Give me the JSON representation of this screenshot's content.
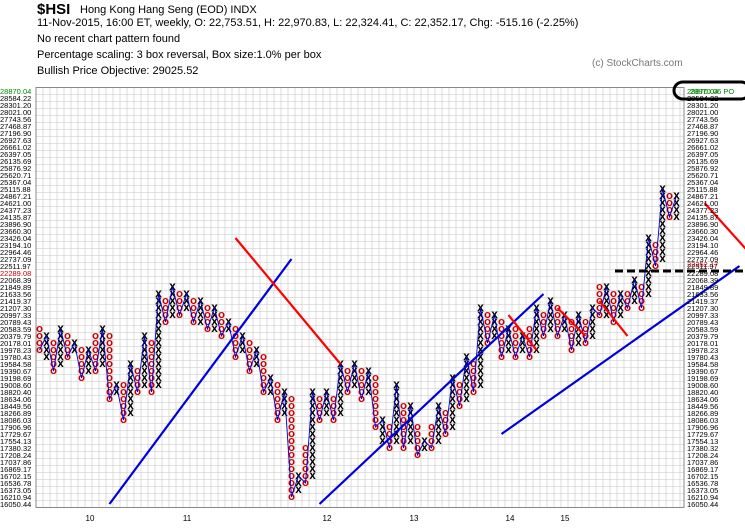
{
  "header": {
    "symbol": "$HSI",
    "name": "Hong Kong Hang Seng (EOD)  INDX",
    "ohlc": "11-Nov-2015, 16:00 ET, weekly, O: 22,753.51, H: 22,970.83, L: 22,324.41, C: 22,352.17, Chg: -515.16 (-2.25%)",
    "pattern": "No recent chart pattern found",
    "scaling": "Percentage scaling: 3 box reversal, Box size:1.0% per box",
    "objective": "Bullish Price Objective: 29025.52",
    "credit": "(c) StockCharts.com"
  },
  "colors": {
    "x": "#000000",
    "o": "#cc0000",
    "trend_up": "#0000dd",
    "trend_down": "#ff0000",
    "price_line": "#0000cc",
    "grid": "#c6c6c6",
    "objective_label": "#008800",
    "current_label": "#cc0000"
  },
  "chart_data": {
    "type": "point-and-figure",
    "box_size_pct": 1.0,
    "reversal": 3,
    "y_labels": [
      "28870.04",
      "28584.22",
      "28301.20",
      "28021.00",
      "27743.56",
      "27468.87",
      "27196.90",
      "26927.63",
      "26661.02",
      "26397.05",
      "26135.69",
      "25876.92",
      "25620.71",
      "25367.04",
      "25115.88",
      "24867.21",
      "24621.00",
      "24377.23",
      "24135.87",
      "23896.90",
      "23660.30",
      "23426.04",
      "23194.10",
      "22964.46",
      "22737.09",
      "22511.97",
      "22289.08",
      "22068.39",
      "21849.89",
      "21633.56",
      "21419.37",
      "21207.30",
      "20997.33",
      "20789.43",
      "20583.59",
      "20379.79",
      "20178.01",
      "19978.23",
      "19780.43",
      "19584.58",
      "19390.67",
      "19198.69",
      "19008.60",
      "18820.40",
      "18634.06",
      "18449.56",
      "18266.89",
      "18086.03",
      "17906.96",
      "17729.67",
      "17554.13",
      "17380.32",
      "17208.24",
      "17037.86",
      "16869.17",
      "16702.15",
      "16536.78",
      "16373.05",
      "16210.94",
      "16050.44"
    ],
    "objective_label": "28870.06 PO",
    "current_label": "22352.17",
    "x_labels": [
      "10",
      "11",
      "12",
      "13",
      "14",
      "15"
    ],
    "columns": [
      {
        "type": "O",
        "top": 25,
        "bottom": 22
      },
      {
        "type": "X",
        "top": 24,
        "bottom": 21
      },
      {
        "type": "O",
        "top": 23,
        "bottom": 19
      },
      {
        "type": "X",
        "top": 25,
        "bottom": 20
      },
      {
        "type": "O",
        "top": 24,
        "bottom": 21
      },
      {
        "type": "X",
        "top": 23,
        "bottom": 22
      },
      {
        "type": "O",
        "top": 22,
        "bottom": 18
      },
      {
        "type": "X",
        "top": 22,
        "bottom": 19
      },
      {
        "type": "O",
        "top": 24,
        "bottom": 19
      },
      {
        "type": "X",
        "top": 25,
        "bottom": 20
      },
      {
        "type": "O",
        "top": 24,
        "bottom": 15
      },
      {
        "type": "X",
        "top": 17,
        "bottom": 16
      },
      {
        "type": "O",
        "top": 17,
        "bottom": 12
      },
      {
        "type": "X",
        "top": 20,
        "bottom": 13
      },
      {
        "type": "O",
        "top": 19,
        "bottom": 16
      },
      {
        "type": "X",
        "top": 24,
        "bottom": 17
      },
      {
        "type": "O",
        "top": 23,
        "bottom": 16
      },
      {
        "type": "X",
        "top": 30,
        "bottom": 17
      },
      {
        "type": "O",
        "top": 29,
        "bottom": 26
      },
      {
        "type": "X",
        "top": 31,
        "bottom": 27
      },
      {
        "type": "O",
        "top": 30,
        "bottom": 27
      },
      {
        "type": "X",
        "top": 30,
        "bottom": 28
      },
      {
        "type": "O",
        "top": 29,
        "bottom": 26
      },
      {
        "type": "X",
        "top": 29,
        "bottom": 26
      },
      {
        "type": "O",
        "top": 28,
        "bottom": 25
      },
      {
        "type": "X",
        "top": 28,
        "bottom": 25
      },
      {
        "type": "O",
        "top": 27,
        "bottom": 24
      },
      {
        "type": "X",
        "top": 26,
        "bottom": 25
      },
      {
        "type": "O",
        "top": 25,
        "bottom": 21
      },
      {
        "type": "X",
        "top": 24,
        "bottom": 22
      },
      {
        "type": "O",
        "top": 23,
        "bottom": 19
      },
      {
        "type": "X",
        "top": 22,
        "bottom": 20
      },
      {
        "type": "O",
        "top": 21,
        "bottom": 16
      },
      {
        "type": "X",
        "top": 18,
        "bottom": 16
      },
      {
        "type": "O",
        "top": 17,
        "bottom": 12
      },
      {
        "type": "X",
        "top": 16,
        "bottom": 13
      },
      {
        "type": "O",
        "top": 15,
        "bottom": 1
      },
      {
        "type": "X",
        "top": 4,
        "bottom": 2
      },
      {
        "type": "O",
        "top": 8,
        "bottom": 3
      },
      {
        "type": "X",
        "top": 16,
        "bottom": 4
      },
      {
        "type": "O",
        "top": 15,
        "bottom": 12
      },
      {
        "type": "X",
        "top": 16,
        "bottom": 13
      },
      {
        "type": "O",
        "top": 15,
        "bottom": 12
      },
      {
        "type": "X",
        "top": 20,
        "bottom": 13
      },
      {
        "type": "O",
        "top": 19,
        "bottom": 16
      },
      {
        "type": "X",
        "top": 20,
        "bottom": 17
      },
      {
        "type": "O",
        "top": 19,
        "bottom": 15
      },
      {
        "type": "X",
        "top": 19,
        "bottom": 16
      },
      {
        "type": "O",
        "top": 18,
        "bottom": 11
      },
      {
        "type": "X",
        "top": 12,
        "bottom": 9
      },
      {
        "type": "O",
        "top": 11,
        "bottom": 8
      },
      {
        "type": "X",
        "top": 17,
        "bottom": 9
      },
      {
        "type": "O",
        "top": 14,
        "bottom": 8
      },
      {
        "type": "X",
        "top": 14,
        "bottom": 9
      },
      {
        "type": "O",
        "top": 11,
        "bottom": 7
      },
      {
        "type": "X",
        "top": 9,
        "bottom": 8
      },
      {
        "type": "O",
        "top": 11,
        "bottom": 8
      },
      {
        "type": "X",
        "top": 14,
        "bottom": 9
      },
      {
        "type": "O",
        "top": 13,
        "bottom": 10
      },
      {
        "type": "X",
        "top": 18,
        "bottom": 11
      },
      {
        "type": "O",
        "top": 17,
        "bottom": 14
      },
      {
        "type": "X",
        "top": 21,
        "bottom": 15
      },
      {
        "type": "O",
        "top": 20,
        "bottom": 16
      },
      {
        "type": "X",
        "top": 28,
        "bottom": 17
      },
      {
        "type": "O",
        "top": 27,
        "bottom": 23
      },
      {
        "type": "X",
        "top": 27,
        "bottom": 24
      },
      {
        "type": "O",
        "top": 26,
        "bottom": 21
      },
      {
        "type": "X",
        "top": 25,
        "bottom": 22
      },
      {
        "type": "O",
        "top": 25,
        "bottom": 21
      },
      {
        "type": "X",
        "top": 24,
        "bottom": 22
      },
      {
        "type": "O",
        "top": 25,
        "bottom": 21
      },
      {
        "type": "X",
        "top": 28,
        "bottom": 22
      },
      {
        "type": "O",
        "top": 27,
        "bottom": 24
      },
      {
        "type": "X",
        "top": 29,
        "bottom": 25
      },
      {
        "type": "O",
        "top": 28,
        "bottom": 24
      },
      {
        "type": "X",
        "top": 27,
        "bottom": 25
      },
      {
        "type": "O",
        "top": 26,
        "bottom": 22
      },
      {
        "type": "X",
        "top": 27,
        "bottom": 23
      },
      {
        "type": "O",
        "top": 26,
        "bottom": 23
      },
      {
        "type": "X",
        "top": 28,
        "bottom": 24
      },
      {
        "type": "O",
        "top": 31,
        "bottom": 27
      },
      {
        "type": "X",
        "top": 31,
        "bottom": 27
      },
      {
        "type": "O",
        "top": 30,
        "bottom": 26
      },
      {
        "type": "X",
        "top": 30,
        "bottom": 27
      },
      {
        "type": "O",
        "top": 30,
        "bottom": 28
      },
      {
        "type": "X",
        "top": 32,
        "bottom": 29
      },
      {
        "type": "O",
        "top": 31,
        "bottom": 28
      },
      {
        "type": "X",
        "top": 38,
        "bottom": 30
      },
      {
        "type": "O",
        "top": 37,
        "bottom": 34
      },
      {
        "type": "X",
        "top": 45,
        "bottom": 35
      },
      {
        "type": "O",
        "top": 44,
        "bottom": 41
      },
      {
        "type": "X",
        "top": 44,
        "bottom": 41
      },
      {
        "type": "O",
        "top": 44,
        "bottom": 41
      },
      {
        "type": "X",
        "top": 45,
        "bottom": 42
      },
      {
        "type": "O",
        "top": 44,
        "bottom": 41
      },
      {
        "type": "X",
        "top": 43,
        "bottom": 41
      },
      {
        "type": "O",
        "top": 42,
        "bottom": 38
      },
      {
        "type": "X",
        "top": 40,
        "bottom": 38
      },
      {
        "type": "O",
        "top": 39,
        "bottom": 21
      },
      {
        "type": "X",
        "top": 32,
        "bottom": 22
      },
      {
        "type": "O",
        "top": 25,
        "bottom": 20
      },
      {
        "type": "X",
        "top": 23,
        "bottom": 21
      },
      {
        "type": "O",
        "top": 22,
        "bottom": 18
      }
    ],
    "trendlines_up": [
      {
        "from": [
          10,
          0
        ],
        "to": [
          36,
          35
        ]
      },
      {
        "from": [
          40,
          0
        ],
        "to": [
          72,
          30
        ]
      },
      {
        "from": [
          66,
          10
        ],
        "to": [
          100,
          34
        ]
      }
    ],
    "trendlines_down": [
      {
        "from": [
          28,
          38
        ],
        "to": [
          43,
          20
        ]
      },
      {
        "from": [
          67,
          27
        ],
        "to": [
          71,
          22
        ]
      },
      {
        "from": [
          74,
          28
        ],
        "to": [
          78,
          24
        ]
      },
      {
        "from": [
          80,
          29
        ],
        "to": [
          84,
          24
        ]
      },
      {
        "from": [
          95,
          43
        ],
        "to": [
          104,
          33
        ]
      }
    ],
    "current_level": 22352.17
  }
}
